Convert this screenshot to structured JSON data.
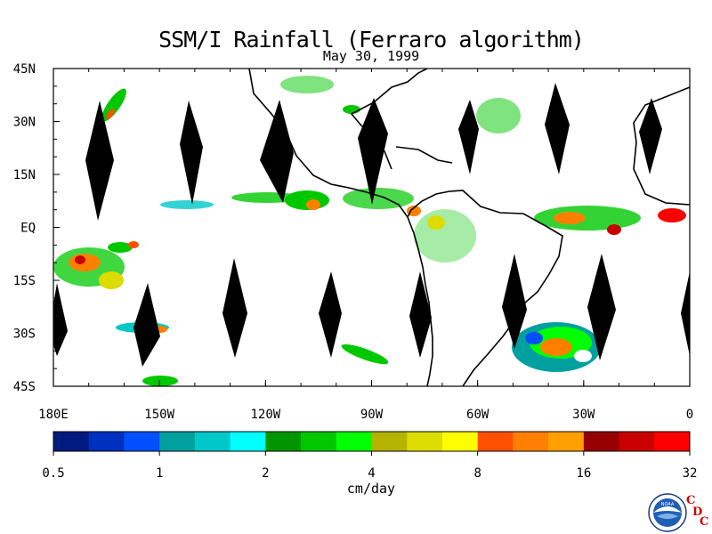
{
  "title": "SSM/I Rainfall (Ferraro algorithm)",
  "date": "May 30, 1999",
  "map": {
    "lat_labels": [
      "45N",
      "30N",
      "15N",
      "EQ",
      "15S",
      "30S",
      "45S"
    ],
    "lon_labels": [
      "180E",
      "150W",
      "120W",
      "90W",
      "60W",
      "30W",
      "0"
    ],
    "lat_range": [
      -45,
      45
    ],
    "lon_range": [
      -180,
      0
    ],
    "land_outline_color": "#000000",
    "orbit_gap_color": "#000000"
  },
  "colorbar": {
    "colors": [
      "#001a80",
      "#0030c0",
      "#0050ff",
      "#00a0a0",
      "#00c8c8",
      "#00ffff",
      "#009600",
      "#00c800",
      "#00ff00",
      "#b4b400",
      "#dcdc00",
      "#ffff00",
      "#ff5000",
      "#ff8000",
      "#ffa000",
      "#960000",
      "#c80000",
      "#ff0000"
    ],
    "tick_labels": [
      "0.5",
      "1",
      "2",
      "4",
      "8",
      "16",
      "32"
    ],
    "unit": "cm/day"
  },
  "logo": {
    "name": "noaa-logo",
    "text": "NOAA",
    "letters": [
      "C",
      "D",
      "C"
    ]
  }
}
